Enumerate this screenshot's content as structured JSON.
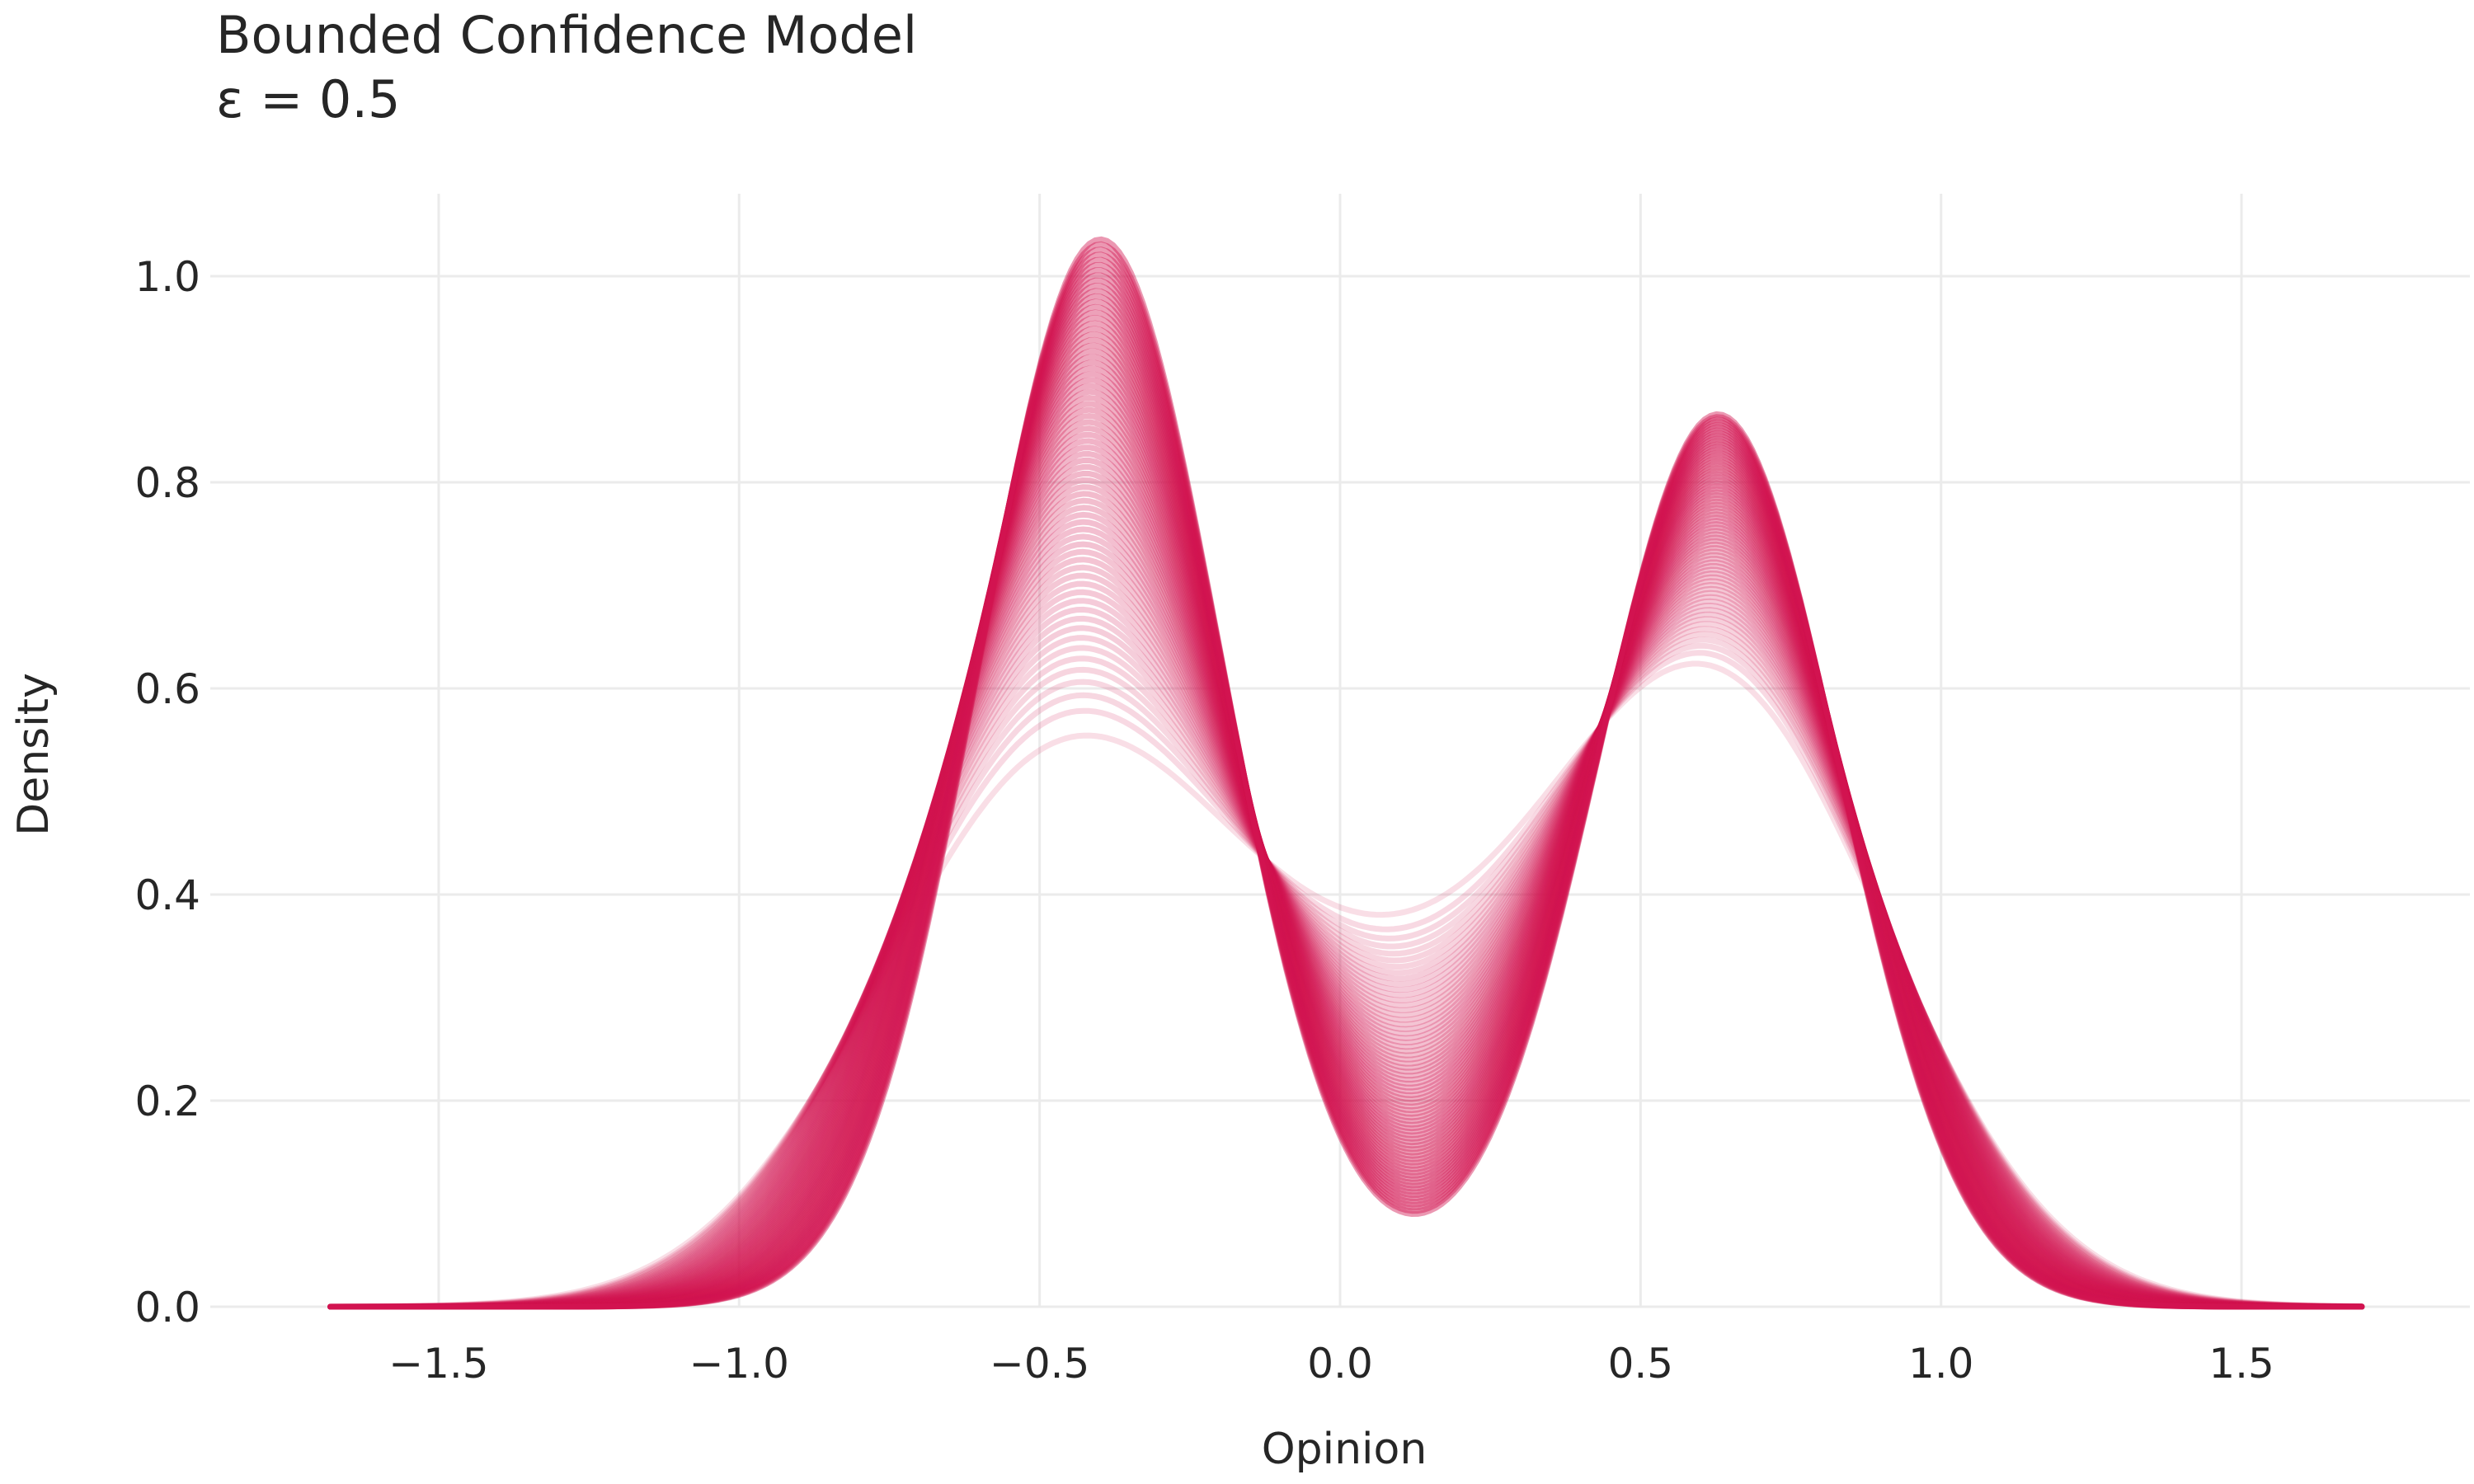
{
  "chart_data": {
    "type": "line",
    "title": "Bounded Confidence Model",
    "subtitle": "ε = 0.5",
    "xlabel": "Opinion",
    "ylabel": "Density",
    "xlim": [
      -1.88,
      1.88
    ],
    "ylim": [
      0,
      1.08
    ],
    "xticks": [
      -1.5,
      -1.0,
      -0.5,
      0.0,
      0.5,
      1.0,
      1.5
    ],
    "xtick_labels": [
      "−1.5",
      "−1.0",
      "−0.5",
      "0.0",
      "0.5",
      "1.0",
      "1.5"
    ],
    "yticks": [
      0.0,
      0.2,
      0.4,
      0.6,
      0.8,
      1.0
    ],
    "ytick_labels": [
      "0.0",
      "0.2",
      "0.4",
      "0.6",
      "0.8",
      "1.0"
    ],
    "grid": true,
    "legend": false,
    "color": "#d21450",
    "x_range": [
      -1.68,
      1.7
    ],
    "n_curves": 70,
    "family": {
      "description_units": "data",
      "initial": {
        "peak1": {
          "mu": -0.47,
          "sigma": 0.3,
          "height": 0.51
        },
        "peak2": {
          "mu": 0.64,
          "sigma": 0.28,
          "height": 0.56
        },
        "center_density": 0.385
      },
      "final": {
        "peak1": {
          "mu": -0.4,
          "sigma": 0.2,
          "height": 1.03
        },
        "peak2": {
          "mu": 0.63,
          "sigma": 0.2,
          "height": 0.86
        },
        "center_density": 0.09
      }
    }
  }
}
